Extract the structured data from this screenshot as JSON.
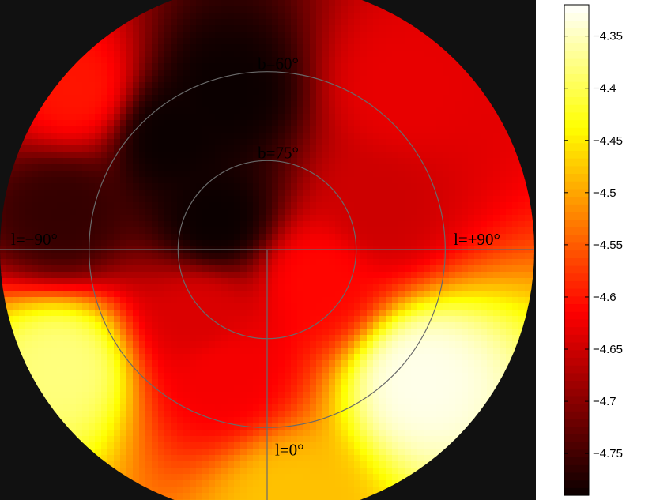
{
  "chart_data": {
    "type": "heatmap",
    "projection": "polar",
    "title": "",
    "xlabel": "",
    "ylabel": "",
    "grid": true,
    "colormap": "hot",
    "color_range": [
      -4.79,
      -4.32
    ],
    "colorbar": {
      "ticks": [
        -4.35,
        -4.4,
        -4.45,
        -4.5,
        -4.55,
        -4.6,
        -4.65,
        -4.7,
        -4.75
      ],
      "tick_labels": [
        "−4.35",
        "−4.4",
        "−4.45",
        "−4.5",
        "−4.55",
        "−4.6",
        "−4.65",
        "−4.7",
        "−4.75"
      ]
    },
    "latitude_circles": [
      {
        "b": 60,
        "label": "b=60°"
      },
      {
        "b": 75,
        "label": "b=75°"
      }
    ],
    "longitude_lines": [
      {
        "l": -90,
        "label": "l=−90°"
      },
      {
        "l": 90,
        "label": "l=+90°"
      },
      {
        "l": 0,
        "label": "l=0°"
      }
    ],
    "b_range": [
      45,
      90
    ],
    "features": [
      {
        "l": -50,
        "b": 56,
        "value": -4.33
      },
      {
        "l": -5,
        "b": 47,
        "value": -4.48
      },
      {
        "l": 60,
        "b": 50,
        "value": -4.38
      },
      {
        "l": 130,
        "b": 48,
        "value": -4.6
      },
      {
        "l": 165,
        "b": 63,
        "value": -4.79
      },
      {
        "l": 140,
        "b": 65,
        "value": -4.79
      },
      {
        "l": 120,
        "b": 80,
        "value": -4.79
      },
      {
        "l": 100,
        "b": 55,
        "value": -4.76
      },
      {
        "l": -140,
        "b": 55,
        "value": -4.63
      },
      {
        "l": -110,
        "b": 70,
        "value": -4.65
      },
      {
        "l": -60,
        "b": 80,
        "value": -4.61
      },
      {
        "l": 20,
        "b": 68,
        "value": -4.62
      },
      {
        "l": 45,
        "b": 74,
        "value": -4.64
      }
    ]
  },
  "colors": {
    "background": "#111111",
    "grid": "#6a6a6a"
  }
}
